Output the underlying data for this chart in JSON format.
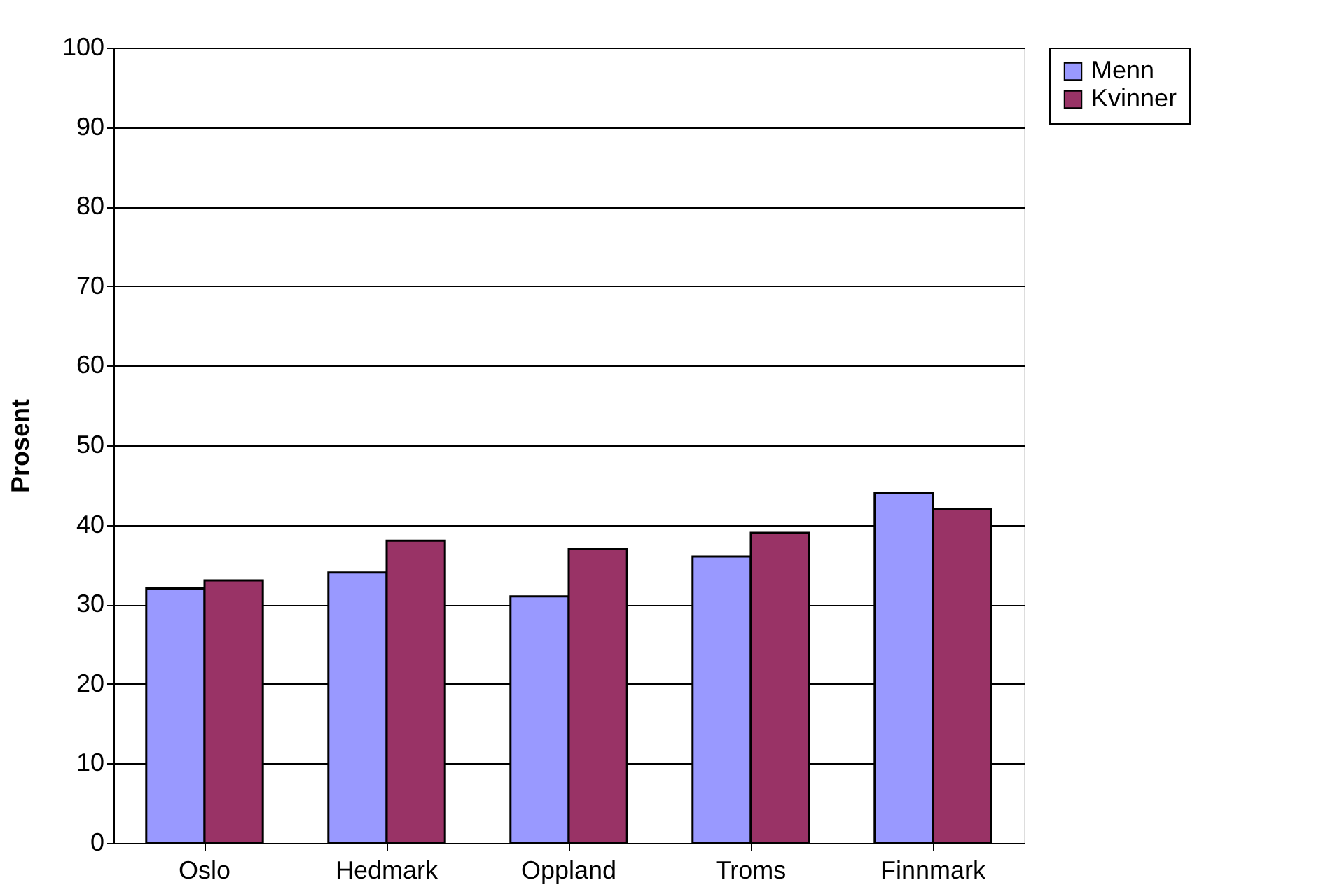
{
  "chart_data": {
    "type": "bar",
    "ylabel": "Prosent",
    "categories": [
      "Oslo",
      "Hedmark",
      "Oppland",
      "Troms",
      "Finnmark"
    ],
    "series": [
      {
        "name": "Menn",
        "color": "#9999ff",
        "values": [
          32,
          34,
          31,
          36,
          44
        ]
      },
      {
        "name": "Kvinner",
        "color": "#993366",
        "values": [
          33,
          38,
          37,
          39,
          42
        ]
      }
    ],
    "ylim": [
      0,
      100
    ],
    "yticks": [
      0,
      10,
      20,
      30,
      40,
      50,
      60,
      70,
      80,
      90,
      100
    ],
    "grid": "y",
    "legend": "right"
  }
}
